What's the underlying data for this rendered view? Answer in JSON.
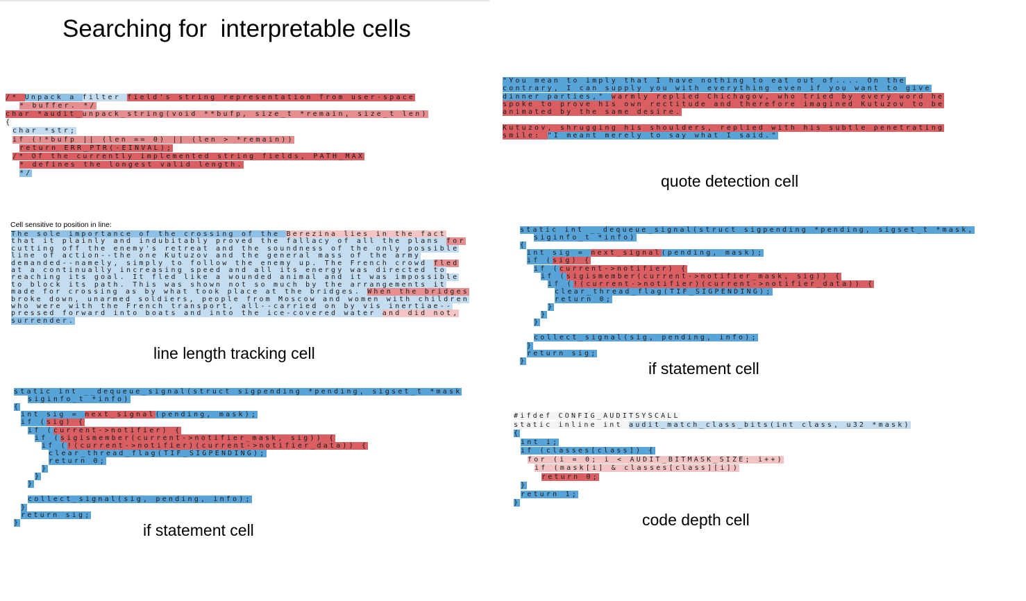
{
  "page": {
    "title": "Searching for  interpretable cells",
    "sublabel": "Cell sensitive to position in line:"
  },
  "captions": {
    "quote": "quote detection cell",
    "line_length": "line length tracking cell",
    "if_right": "if statement cell",
    "if_left": "if statement cell",
    "code_depth": "code depth cell"
  },
  "colors": {
    "positive_activation": "#d95f63",
    "negative_activation": "#58a4d9",
    "neutral": "#f4f4f4"
  },
  "panels": {
    "code_top_left": {
      "lines": [
        {
          "indent": 0,
          "segs": [
            [
              "/* ",
              "r1"
            ],
            [
              "Unpack a ",
              "b2"
            ],
            [
              "filter ",
              "b3"
            ],
            [
              "field's string ",
              "r1"
            ],
            [
              "representation from user-space",
              "r1"
            ]
          ]
        },
        {
          "indent": 2,
          "segs": [
            [
              "* buffer. */",
              "r2"
            ]
          ]
        },
        {
          "indent": 0,
          "segs": [
            [
              "char ",
              "r1"
            ],
            [
              "*audit_",
              "r1"
            ],
            [
              "unpack_string(void **bufp, size_t *remain, size_t len)",
              "r2"
            ]
          ]
        },
        {
          "indent": 0,
          "segs": [
            [
              "{",
              "w"
            ]
          ]
        },
        {
          "indent": 1,
          "segs": [
            [
              "char *str;",
              "b3"
            ]
          ]
        },
        {
          "indent": 1,
          "segs": [
            [
              "if (!*bufp || (len == 0) || (len > *remain))",
              "r2"
            ]
          ]
        },
        {
          "indent": 2,
          "segs": [
            [
              "return ERR_PTR(-EINVAL);",
              "r1"
            ]
          ]
        },
        {
          "indent": 1,
          "segs": [
            [
              "/* Of the currently implemented string fields, PATH_MAX",
              "r1"
            ]
          ]
        },
        {
          "indent": 2,
          "segs": [
            [
              "* defines the longest valid length.",
              "r1"
            ]
          ]
        },
        {
          "indent": 2,
          "segs": [
            [
              "*/",
              "b2"
            ]
          ]
        }
      ]
    },
    "quote": {
      "lines": [
        {
          "indent": 0,
          "segs": [
            [
              "\"You mean to imply that I have nothing to eat out of.... On the",
              "b1"
            ]
          ]
        },
        {
          "indent": 0,
          "segs": [
            [
              "contrary, I can supply you with everything even if you want to give",
              "b1"
            ]
          ]
        },
        {
          "indent": 0,
          "segs": [
            [
              "dinner parties,\" ",
              "b1"
            ],
            [
              "warmly replied Chichagov, who tried by every word he",
              "r1"
            ]
          ]
        },
        {
          "indent": 0,
          "segs": [
            [
              "spoke to prove his own rectitude and therefore imagined Kutuzov to be",
              "r1"
            ]
          ]
        },
        {
          "indent": 0,
          "segs": [
            [
              "animated by the same desire.",
              "r1"
            ]
          ]
        },
        {
          "indent": 0,
          "segs": [
            [
              "",
              "w"
            ]
          ]
        },
        {
          "indent": 0,
          "segs": [
            [
              "Kutuzov, shrugging his shoulders, replied with his subtle penetrating",
              "r1"
            ]
          ]
        },
        {
          "indent": 0,
          "segs": [
            [
              "smile: ",
              "r1"
            ],
            [
              "\"I meant merely to say what I said.\"",
              "b1"
            ]
          ]
        }
      ]
    },
    "line_length": {
      "lines": [
        {
          "indent": 0,
          "segs": [
            [
              "The sole importance of the crossing of the ",
              "b2"
            ],
            [
              "Berezina lies in the fact",
              "r3"
            ]
          ]
        },
        {
          "indent": 0,
          "segs": [
            [
              "that it plainly and indubitably proved the fallacy of all the plans ",
              "b3"
            ],
            [
              "for",
              "r2"
            ]
          ]
        },
        {
          "indent": 0,
          "segs": [
            [
              "cutting off the enemy's retreat and the soundness of the only possible",
              "b3"
            ]
          ]
        },
        {
          "indent": 0,
          "segs": [
            [
              "line of action--the one Kutuzov and the general mass of the army",
              "b3"
            ]
          ]
        },
        {
          "indent": 0,
          "segs": [
            [
              "demanded--namely, simply to follow the enemy up. The French crowd ",
              "b3"
            ],
            [
              "fled",
              "r2"
            ]
          ]
        },
        {
          "indent": 0,
          "segs": [
            [
              "at a continually increasing speed and all its energy was directed to",
              "b3"
            ]
          ]
        },
        {
          "indent": 0,
          "segs": [
            [
              "reaching its goal. It fled like a wounded animal and it was impossible",
              "b3"
            ]
          ]
        },
        {
          "indent": 0,
          "segs": [
            [
              "to block its path. This was shown not so much by the arrangements it",
              "b3"
            ]
          ]
        },
        {
          "indent": 0,
          "segs": [
            [
              "made for crossing as by what took place at the bridges. ",
              "b3"
            ],
            [
              "When the bridges",
              "r2"
            ]
          ]
        },
        {
          "indent": 0,
          "segs": [
            [
              "broke down, unarmed soldiers, people from Moscow and women with children",
              "b3"
            ]
          ]
        },
        {
          "indent": 0,
          "segs": [
            [
              "who were with the French transport, all--carried on by vis inertiae--",
              "b3"
            ]
          ]
        },
        {
          "indent": 0,
          "segs": [
            [
              "pressed forward into boats and into the ice-covered water ",
              "b3"
            ],
            [
              "and did not,",
              "r3"
            ]
          ]
        },
        {
          "indent": 0,
          "segs": [
            [
              "surrender.",
              "b2"
            ]
          ]
        }
      ]
    },
    "if_right": {
      "lines": [
        {
          "indent": 0,
          "segs": [
            [
              "static int __dequeue_signal(struct sigpending *pending, sigset_t *mask,",
              "b1"
            ]
          ]
        },
        {
          "indent": 2,
          "segs": [
            [
              "siginfo_t *info)",
              "b1"
            ]
          ]
        },
        {
          "indent": 0,
          "segs": [
            [
              "{",
              "b1"
            ]
          ]
        },
        {
          "indent": 1,
          "segs": [
            [
              "int sig = ",
              "b1"
            ],
            [
              "next_signal",
              "r1"
            ],
            [
              "(pending, mask);",
              "b1"
            ]
          ]
        },
        {
          "indent": 1,
          "segs": [
            [
              "if (",
              "b1"
            ],
            [
              "sig) {",
              "r1"
            ]
          ]
        },
        {
          "indent": 2,
          "segs": [
            [
              "if (",
              "b1"
            ],
            [
              "current->notifier) {",
              "r1"
            ]
          ]
        },
        {
          "indent": 3,
          "segs": [
            [
              "if (",
              "b1"
            ],
            [
              "sigismember(current->notifier_mask, sig)) {",
              "r1"
            ]
          ]
        },
        {
          "indent": 4,
          "segs": [
            [
              "if (",
              "b1"
            ],
            [
              "!(current->notifier)(current->notifier_data)) {",
              "r1"
            ]
          ]
        },
        {
          "indent": 5,
          "segs": [
            [
              "clear_thread_flag(TIF_SIGPENDING);",
              "b1"
            ]
          ]
        },
        {
          "indent": 5,
          "segs": [
            [
              "return 0;",
              "b1"
            ]
          ]
        },
        {
          "indent": 4,
          "segs": [
            [
              "}",
              "b1"
            ]
          ]
        },
        {
          "indent": 3,
          "segs": [
            [
              "}",
              "b1"
            ]
          ]
        },
        {
          "indent": 2,
          "segs": [
            [
              "}",
              "b1"
            ]
          ]
        },
        {
          "indent": 0,
          "segs": [
            [
              "",
              "w"
            ]
          ]
        },
        {
          "indent": 2,
          "segs": [
            [
              "collect_signal(sig, pending, info);",
              "b1"
            ]
          ]
        },
        {
          "indent": 1,
          "segs": [
            [
              "}",
              "b1"
            ]
          ]
        },
        {
          "indent": 1,
          "segs": [
            [
              "return sig;",
              "b1"
            ]
          ]
        },
        {
          "indent": 0,
          "segs": [
            [
              "}",
              "b1"
            ]
          ]
        }
      ]
    },
    "if_left": {
      "lines": [
        {
          "indent": 0,
          "segs": [
            [
              "static int __dequeue_signal(struct sigpending *pending, sigset_t *mask",
              "b1"
            ]
          ]
        },
        {
          "indent": 2,
          "segs": [
            [
              "siginfo_t *info)",
              "b1"
            ]
          ]
        },
        {
          "indent": 0,
          "segs": [
            [
              "{",
              "b1"
            ]
          ]
        },
        {
          "indent": 1,
          "segs": [
            [
              "int sig = ",
              "b1"
            ],
            [
              "next_signal",
              "r1"
            ],
            [
              "(pending, mask);",
              "b1"
            ]
          ]
        },
        {
          "indent": 1,
          "segs": [
            [
              "if (",
              "b1"
            ],
            [
              "sig) {",
              "r1"
            ]
          ]
        },
        {
          "indent": 2,
          "segs": [
            [
              "if (",
              "b1"
            ],
            [
              "current->notifier) {",
              "r1"
            ]
          ]
        },
        {
          "indent": 3,
          "segs": [
            [
              "if (",
              "b1"
            ],
            [
              "sigismember(current->notifier_mask, sig)) {",
              "r1"
            ]
          ]
        },
        {
          "indent": 4,
          "segs": [
            [
              "if (",
              "b1"
            ],
            [
              "!(current->notifier)(current->notifier_data)) {",
              "r1"
            ]
          ]
        },
        {
          "indent": 5,
          "segs": [
            [
              "clear_thread_flag(TIF_SIGPENDING);",
              "b1"
            ]
          ]
        },
        {
          "indent": 5,
          "segs": [
            [
              "return 0;",
              "b1"
            ]
          ]
        },
        {
          "indent": 4,
          "segs": [
            [
              "}",
              "b1"
            ]
          ]
        },
        {
          "indent": 3,
          "segs": [
            [
              "}",
              "b1"
            ]
          ]
        },
        {
          "indent": 2,
          "segs": [
            [
              "}",
              "b1"
            ]
          ]
        },
        {
          "indent": 0,
          "segs": [
            [
              "",
              "w"
            ]
          ]
        },
        {
          "indent": 2,
          "segs": [
            [
              "collect_signal(sig, pending, info);",
              "b1"
            ]
          ]
        },
        {
          "indent": 1,
          "segs": [
            [
              "}",
              "b1"
            ]
          ]
        },
        {
          "indent": 1,
          "segs": [
            [
              "return sig;",
              "b1"
            ]
          ]
        },
        {
          "indent": 0,
          "segs": [
            [
              "}",
              "b1"
            ]
          ]
        }
      ]
    },
    "code_depth": {
      "lines": [
        {
          "indent": 0,
          "segs": [
            [
              "#ifdef CONFIG_AUDITSYSCALL",
              "w"
            ]
          ]
        },
        {
          "indent": 0,
          "segs": [
            [
              "static inline int ",
              "w"
            ],
            [
              "audit_match_class_bits(int class, u32 *mask)",
              "b3"
            ]
          ]
        },
        {
          "indent": 0,
          "segs": [
            [
              "{",
              "b1"
            ]
          ]
        },
        {
          "indent": 1,
          "segs": [
            [
              "int i;",
              "b1"
            ]
          ]
        },
        {
          "indent": 1,
          "segs": [
            [
              "if (classes[class]) {",
              "b1"
            ]
          ]
        },
        {
          "indent": 2,
          "segs": [
            [
              "for (i = 0; i < AUDIT_BITMASK_SIZE; i++)",
              "r3"
            ]
          ]
        },
        {
          "indent": 3,
          "segs": [
            [
              "if (mask[i] & classes[class][i])",
              "r3"
            ]
          ]
        },
        {
          "indent": 4,
          "segs": [
            [
              "return 0;",
              "r1"
            ]
          ]
        },
        {
          "indent": 1,
          "segs": [
            [
              "}",
              "b1"
            ]
          ]
        },
        {
          "indent": 1,
          "segs": [
            [
              "return 1;",
              "b1"
            ]
          ]
        },
        {
          "indent": 0,
          "segs": [
            [
              "}",
              "b1"
            ]
          ]
        }
      ]
    }
  }
}
